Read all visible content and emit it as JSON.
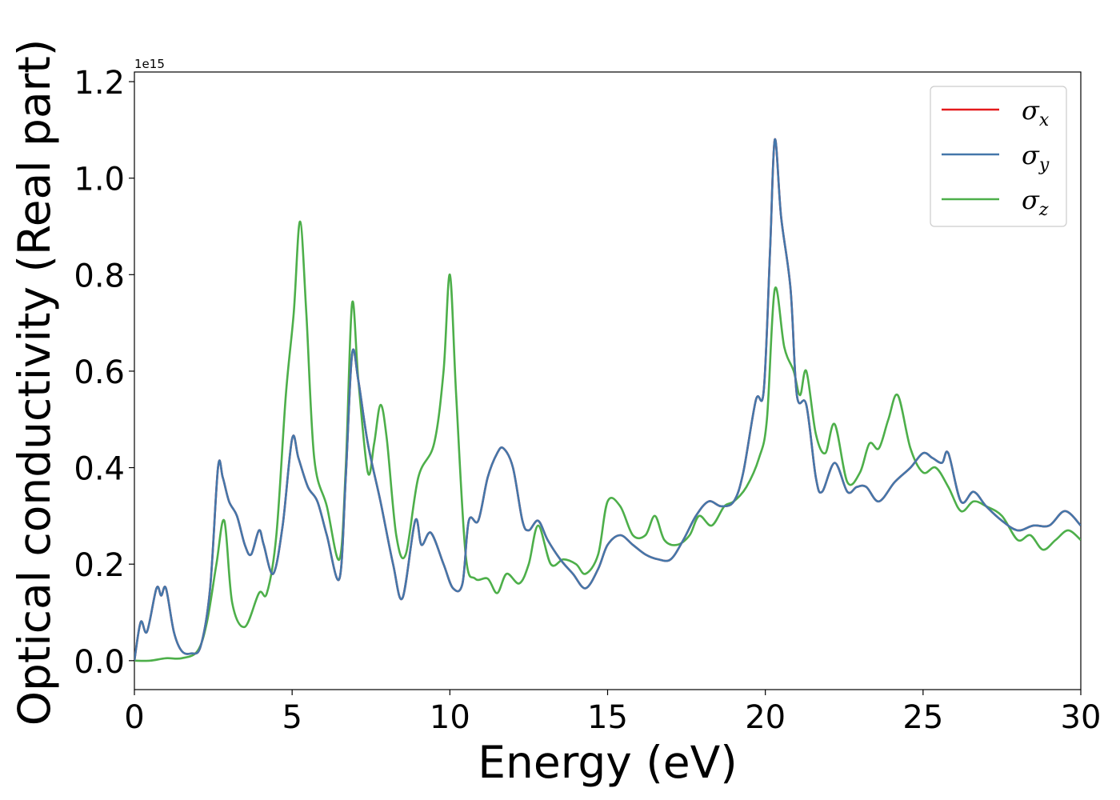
{
  "chart_data": {
    "type": "line",
    "title": "",
    "xlabel": "Energy (eV)",
    "ylabel": "Optical conductivity (Real part)",
    "y_offset_label": "1e15",
    "xlim": [
      0,
      30
    ],
    "ylim": [
      -0.06,
      1.22
    ],
    "xticks": [
      0,
      5,
      10,
      15,
      20,
      25,
      30
    ],
    "xtick_labels": [
      "0",
      "5",
      "10",
      "15",
      "20",
      "25",
      "30"
    ],
    "yticks": [
      0.0,
      0.2,
      0.4,
      0.6,
      0.8,
      1.0,
      1.2
    ],
    "ytick_labels": [
      "0.0",
      "0.2",
      "0.4",
      "0.6",
      "0.8",
      "1.0",
      "1.2"
    ],
    "legend_position": "upper-right",
    "grid": false,
    "series": [
      {
        "name": "σx",
        "label_base": "σ",
        "label_sub": "x",
        "color": "#e41a1c",
        "points": [
          [
            0,
            0.0
          ],
          [
            0.2,
            0.08
          ],
          [
            0.4,
            0.06
          ],
          [
            0.7,
            0.15
          ],
          [
            0.85,
            0.135
          ],
          [
            1.0,
            0.15
          ],
          [
            1.25,
            0.06
          ],
          [
            1.5,
            0.02
          ],
          [
            1.8,
            0.015
          ],
          [
            2.1,
            0.03
          ],
          [
            2.4,
            0.15
          ],
          [
            2.65,
            0.4
          ],
          [
            2.8,
            0.38
          ],
          [
            3.0,
            0.33
          ],
          [
            3.25,
            0.3
          ],
          [
            3.5,
            0.24
          ],
          [
            3.7,
            0.22
          ],
          [
            3.95,
            0.27
          ],
          [
            4.1,
            0.24
          ],
          [
            4.4,
            0.18
          ],
          [
            4.7,
            0.28
          ],
          [
            5.0,
            0.46
          ],
          [
            5.2,
            0.42
          ],
          [
            5.5,
            0.36
          ],
          [
            5.8,
            0.33
          ],
          [
            6.1,
            0.26
          ],
          [
            6.5,
            0.17
          ],
          [
            6.7,
            0.38
          ],
          [
            6.9,
            0.635
          ],
          [
            7.1,
            0.58
          ],
          [
            7.4,
            0.45
          ],
          [
            7.8,
            0.33
          ],
          [
            8.2,
            0.2
          ],
          [
            8.5,
            0.13
          ],
          [
            8.9,
            0.29
          ],
          [
            9.1,
            0.24
          ],
          [
            9.4,
            0.265
          ],
          [
            9.8,
            0.2
          ],
          [
            10.1,
            0.15
          ],
          [
            10.4,
            0.16
          ],
          [
            10.6,
            0.29
          ],
          [
            10.9,
            0.29
          ],
          [
            11.2,
            0.38
          ],
          [
            11.5,
            0.43
          ],
          [
            11.7,
            0.44
          ],
          [
            12.0,
            0.4
          ],
          [
            12.3,
            0.29
          ],
          [
            12.5,
            0.27
          ],
          [
            12.8,
            0.29
          ],
          [
            13.1,
            0.25
          ],
          [
            13.5,
            0.21
          ],
          [
            13.9,
            0.18
          ],
          [
            14.3,
            0.15
          ],
          [
            14.7,
            0.19
          ],
          [
            15.0,
            0.24
          ],
          [
            15.4,
            0.26
          ],
          [
            15.8,
            0.24
          ],
          [
            16.2,
            0.22
          ],
          [
            16.6,
            0.21
          ],
          [
            17.0,
            0.21
          ],
          [
            17.4,
            0.25
          ],
          [
            17.8,
            0.3
          ],
          [
            18.2,
            0.33
          ],
          [
            18.6,
            0.32
          ],
          [
            19.0,
            0.33
          ],
          [
            19.3,
            0.39
          ],
          [
            19.7,
            0.54
          ],
          [
            19.95,
            0.56
          ],
          [
            20.15,
            0.85
          ],
          [
            20.3,
            1.08
          ],
          [
            20.5,
            0.92
          ],
          [
            20.8,
            0.77
          ],
          [
            21.0,
            0.55
          ],
          [
            21.3,
            0.53
          ],
          [
            21.6,
            0.38
          ],
          [
            21.8,
            0.35
          ],
          [
            22.2,
            0.41
          ],
          [
            22.6,
            0.35
          ],
          [
            22.9,
            0.36
          ],
          [
            23.2,
            0.36
          ],
          [
            23.6,
            0.33
          ],
          [
            24.1,
            0.37
          ],
          [
            24.6,
            0.4
          ],
          [
            25.0,
            0.43
          ],
          [
            25.3,
            0.42
          ],
          [
            25.6,
            0.41
          ],
          [
            25.8,
            0.43
          ],
          [
            26.2,
            0.33
          ],
          [
            26.6,
            0.35
          ],
          [
            27.0,
            0.32
          ],
          [
            27.5,
            0.29
          ],
          [
            28.0,
            0.27
          ],
          [
            28.5,
            0.28
          ],
          [
            29.0,
            0.28
          ],
          [
            29.5,
            0.31
          ],
          [
            30.0,
            0.28
          ]
        ]
      },
      {
        "name": "σy",
        "label_base": "σ",
        "label_sub": "y",
        "color": "#4477aa",
        "points": [
          [
            0,
            0.0
          ],
          [
            0.2,
            0.08
          ],
          [
            0.4,
            0.06
          ],
          [
            0.7,
            0.15
          ],
          [
            0.85,
            0.135
          ],
          [
            1.0,
            0.15
          ],
          [
            1.25,
            0.06
          ],
          [
            1.5,
            0.02
          ],
          [
            1.8,
            0.015
          ],
          [
            2.1,
            0.03
          ],
          [
            2.4,
            0.15
          ],
          [
            2.65,
            0.4
          ],
          [
            2.8,
            0.38
          ],
          [
            3.0,
            0.33
          ],
          [
            3.25,
            0.3
          ],
          [
            3.5,
            0.24
          ],
          [
            3.7,
            0.22
          ],
          [
            3.95,
            0.27
          ],
          [
            4.1,
            0.24
          ],
          [
            4.4,
            0.18
          ],
          [
            4.7,
            0.28
          ],
          [
            5.0,
            0.46
          ],
          [
            5.2,
            0.42
          ],
          [
            5.5,
            0.36
          ],
          [
            5.8,
            0.33
          ],
          [
            6.1,
            0.26
          ],
          [
            6.5,
            0.17
          ],
          [
            6.7,
            0.38
          ],
          [
            6.9,
            0.635
          ],
          [
            7.1,
            0.58
          ],
          [
            7.4,
            0.45
          ],
          [
            7.8,
            0.33
          ],
          [
            8.2,
            0.2
          ],
          [
            8.5,
            0.13
          ],
          [
            8.9,
            0.29
          ],
          [
            9.1,
            0.24
          ],
          [
            9.4,
            0.265
          ],
          [
            9.8,
            0.2
          ],
          [
            10.1,
            0.15
          ],
          [
            10.4,
            0.16
          ],
          [
            10.6,
            0.29
          ],
          [
            10.9,
            0.29
          ],
          [
            11.2,
            0.38
          ],
          [
            11.5,
            0.43
          ],
          [
            11.7,
            0.44
          ],
          [
            12.0,
            0.4
          ],
          [
            12.3,
            0.29
          ],
          [
            12.5,
            0.27
          ],
          [
            12.8,
            0.29
          ],
          [
            13.1,
            0.25
          ],
          [
            13.5,
            0.21
          ],
          [
            13.9,
            0.18
          ],
          [
            14.3,
            0.15
          ],
          [
            14.7,
            0.19
          ],
          [
            15.0,
            0.24
          ],
          [
            15.4,
            0.26
          ],
          [
            15.8,
            0.24
          ],
          [
            16.2,
            0.22
          ],
          [
            16.6,
            0.21
          ],
          [
            17.0,
            0.21
          ],
          [
            17.4,
            0.25
          ],
          [
            17.8,
            0.3
          ],
          [
            18.2,
            0.33
          ],
          [
            18.6,
            0.32
          ],
          [
            19.0,
            0.33
          ],
          [
            19.3,
            0.39
          ],
          [
            19.7,
            0.54
          ],
          [
            19.95,
            0.56
          ],
          [
            20.15,
            0.85
          ],
          [
            20.3,
            1.08
          ],
          [
            20.5,
            0.92
          ],
          [
            20.8,
            0.77
          ],
          [
            21.0,
            0.55
          ],
          [
            21.3,
            0.53
          ],
          [
            21.6,
            0.38
          ],
          [
            21.8,
            0.35
          ],
          [
            22.2,
            0.41
          ],
          [
            22.6,
            0.35
          ],
          [
            22.9,
            0.36
          ],
          [
            23.2,
            0.36
          ],
          [
            23.6,
            0.33
          ],
          [
            24.1,
            0.37
          ],
          [
            24.6,
            0.4
          ],
          [
            25.0,
            0.43
          ],
          [
            25.3,
            0.42
          ],
          [
            25.6,
            0.41
          ],
          [
            25.8,
            0.43
          ],
          [
            26.2,
            0.33
          ],
          [
            26.6,
            0.35
          ],
          [
            27.0,
            0.32
          ],
          [
            27.5,
            0.29
          ],
          [
            28.0,
            0.27
          ],
          [
            28.5,
            0.28
          ],
          [
            29.0,
            0.28
          ],
          [
            29.5,
            0.31
          ],
          [
            30.0,
            0.28
          ]
        ]
      },
      {
        "name": "σz",
        "label_base": "σ",
        "label_sub": "z",
        "color": "#4daf4a",
        "points": [
          [
            0,
            0.0
          ],
          [
            0.5,
            0.0
          ],
          [
            1.0,
            0.005
          ],
          [
            1.5,
            0.005
          ],
          [
            2.0,
            0.02
          ],
          [
            2.3,
            0.08
          ],
          [
            2.6,
            0.2
          ],
          [
            2.85,
            0.29
          ],
          [
            3.1,
            0.12
          ],
          [
            3.5,
            0.07
          ],
          [
            3.95,
            0.14
          ],
          [
            4.2,
            0.14
          ],
          [
            4.5,
            0.26
          ],
          [
            4.8,
            0.55
          ],
          [
            5.05,
            0.72
          ],
          [
            5.25,
            0.91
          ],
          [
            5.45,
            0.72
          ],
          [
            5.7,
            0.42
          ],
          [
            6.1,
            0.32
          ],
          [
            6.5,
            0.21
          ],
          [
            6.7,
            0.4
          ],
          [
            6.9,
            0.74
          ],
          [
            7.1,
            0.58
          ],
          [
            7.4,
            0.39
          ],
          [
            7.6,
            0.45
          ],
          [
            7.8,
            0.53
          ],
          [
            8.0,
            0.46
          ],
          [
            8.3,
            0.26
          ],
          [
            8.6,
            0.22
          ],
          [
            9.0,
            0.38
          ],
          [
            9.5,
            0.45
          ],
          [
            9.8,
            0.6
          ],
          [
            10.0,
            0.8
          ],
          [
            10.2,
            0.55
          ],
          [
            10.5,
            0.22
          ],
          [
            10.8,
            0.17
          ],
          [
            11.2,
            0.17
          ],
          [
            11.5,
            0.14
          ],
          [
            11.8,
            0.18
          ],
          [
            12.2,
            0.16
          ],
          [
            12.5,
            0.2
          ],
          [
            12.8,
            0.28
          ],
          [
            13.2,
            0.2
          ],
          [
            13.6,
            0.21
          ],
          [
            14.0,
            0.2
          ],
          [
            14.3,
            0.18
          ],
          [
            14.7,
            0.22
          ],
          [
            15.0,
            0.33
          ],
          [
            15.4,
            0.32
          ],
          [
            15.8,
            0.26
          ],
          [
            16.2,
            0.26
          ],
          [
            16.5,
            0.3
          ],
          [
            16.8,
            0.25
          ],
          [
            17.2,
            0.24
          ],
          [
            17.6,
            0.26
          ],
          [
            17.9,
            0.3
          ],
          [
            18.3,
            0.28
          ],
          [
            18.7,
            0.32
          ],
          [
            19.0,
            0.33
          ],
          [
            19.4,
            0.36
          ],
          [
            19.8,
            0.42
          ],
          [
            20.05,
            0.5
          ],
          [
            20.3,
            0.77
          ],
          [
            20.6,
            0.65
          ],
          [
            20.9,
            0.6
          ],
          [
            21.1,
            0.55
          ],
          [
            21.3,
            0.6
          ],
          [
            21.6,
            0.47
          ],
          [
            21.9,
            0.43
          ],
          [
            22.2,
            0.49
          ],
          [
            22.6,
            0.37
          ],
          [
            23.0,
            0.39
          ],
          [
            23.3,
            0.45
          ],
          [
            23.6,
            0.44
          ],
          [
            23.9,
            0.5
          ],
          [
            24.2,
            0.55
          ],
          [
            24.6,
            0.44
          ],
          [
            25.0,
            0.39
          ],
          [
            25.4,
            0.4
          ],
          [
            25.8,
            0.36
          ],
          [
            26.2,
            0.31
          ],
          [
            26.6,
            0.33
          ],
          [
            27.0,
            0.32
          ],
          [
            27.5,
            0.3
          ],
          [
            28.0,
            0.25
          ],
          [
            28.4,
            0.26
          ],
          [
            28.8,
            0.23
          ],
          [
            29.2,
            0.25
          ],
          [
            29.6,
            0.27
          ],
          [
            30.0,
            0.25
          ]
        ]
      }
    ]
  }
}
